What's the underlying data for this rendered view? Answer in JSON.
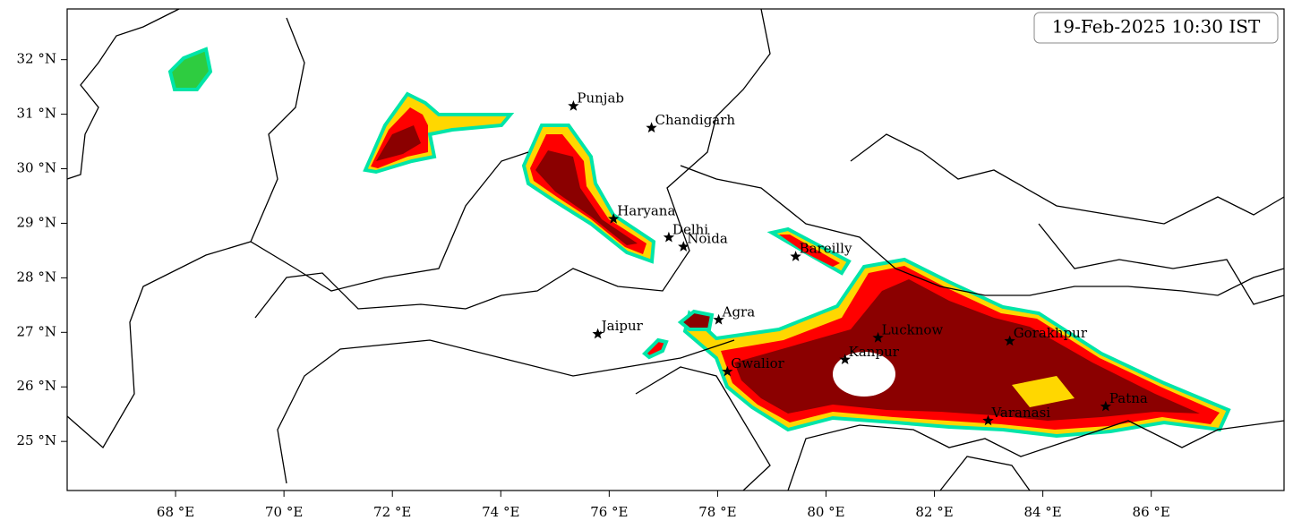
{
  "map": {
    "timestamp": "19-Feb-2025 10:30 IST",
    "xlim": [
      66,
      88.45
    ],
    "ylim": [
      24.1,
      32.93
    ],
    "xticks": [
      {
        "value": 68,
        "label": "68 °E"
      },
      {
        "value": 70,
        "label": "70 °E"
      },
      {
        "value": 72,
        "label": "72 °E"
      },
      {
        "value": 74,
        "label": "74 °E"
      },
      {
        "value": 76,
        "label": "76 °E"
      },
      {
        "value": 78,
        "label": "78 °E"
      },
      {
        "value": 80,
        "label": "80 °E"
      },
      {
        "value": 82,
        "label": "82 °E"
      },
      {
        "value": 84,
        "label": "84 °E"
      },
      {
        "value": 86,
        "label": "86 °E"
      }
    ],
    "yticks": [
      {
        "value": 25,
        "label": "25 °N"
      },
      {
        "value": 26,
        "label": "26 °N"
      },
      {
        "value": 27,
        "label": "27 °N"
      },
      {
        "value": 28,
        "label": "28 °N"
      },
      {
        "value": 29,
        "label": "29 °N"
      },
      {
        "value": 30,
        "label": "30 °N"
      },
      {
        "value": 31,
        "label": "31 °N"
      },
      {
        "value": 32,
        "label": "32 °N"
      }
    ],
    "cities": [
      {
        "name": "Punjab",
        "lon": 75.34,
        "lat": 31.15
      },
      {
        "name": "Chandigarh",
        "lon": 76.78,
        "lat": 30.75
      },
      {
        "name": "Haryana",
        "lon": 76.08,
        "lat": 29.08
      },
      {
        "name": "Delhi",
        "lon": 77.1,
        "lat": 28.74
      },
      {
        "name": "Noida",
        "lon": 77.37,
        "lat": 28.57
      },
      {
        "name": "Bareilly",
        "lon": 79.44,
        "lat": 28.39
      },
      {
        "name": "Agra",
        "lon": 78.02,
        "lat": 27.23
      },
      {
        "name": "Jaipur",
        "lon": 75.79,
        "lat": 26.97
      },
      {
        "name": "Lucknow",
        "lon": 80.96,
        "lat": 26.9
      },
      {
        "name": "Gorakhpur",
        "lon": 83.39,
        "lat": 26.84
      },
      {
        "name": "Kanpur",
        "lon": 80.35,
        "lat": 26.5
      },
      {
        "name": "Gwalior",
        "lon": 78.18,
        "lat": 26.28
      },
      {
        "name": "Varanasi",
        "lon": 82.99,
        "lat": 25.38
      },
      {
        "name": "Patna",
        "lon": 85.16,
        "lat": 25.64
      }
    ]
  }
}
